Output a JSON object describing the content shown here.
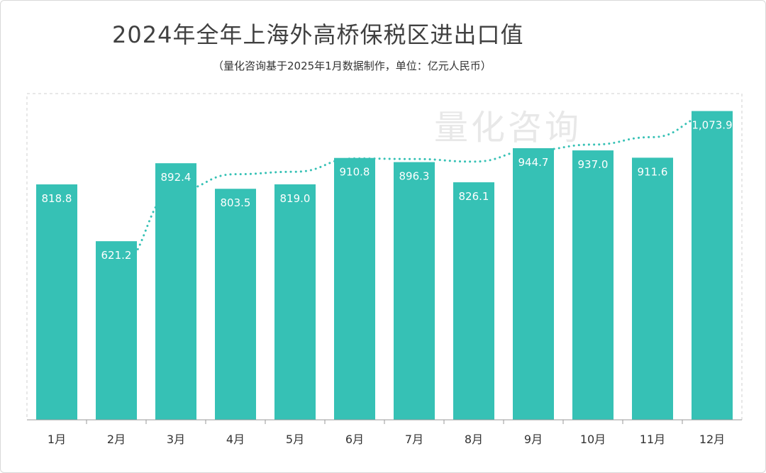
{
  "chart_data": {
    "type": "bar",
    "title": "2024年全年上海外高桥保税区进出口值",
    "subtitle": "（量化咨询基于2025年1月数据制作，单位：亿元人民币）",
    "watermark": "量化咨询",
    "categories": [
      "1月",
      "2月",
      "3月",
      "4月",
      "5月",
      "6月",
      "7月",
      "8月",
      "9月",
      "10月",
      "11月",
      "12月"
    ],
    "series": [
      {
        "values": [
          818.8,
          621.2,
          892.4,
          803.5,
          819.0,
          910.8,
          896.3,
          826.1,
          944.7,
          937.0,
          911.6,
          1073.9
        ]
      }
    ],
    "value_labels": [
      "818.8",
      "621.2",
      "892.4",
      "803.5",
      "819.0",
      "910.8",
      "896.3",
      "826.1",
      "944.7",
      "937.0",
      "911.6",
      "1,073.9"
    ],
    "trend_line": {
      "style": "dotted",
      "start_category_index": 1
    },
    "ylim": [
      0,
      1100
    ],
    "grid": false,
    "colors": {
      "bar": "#36c1b5",
      "trend": "#36c1b5",
      "bar_label": "#ffffff"
    }
  }
}
